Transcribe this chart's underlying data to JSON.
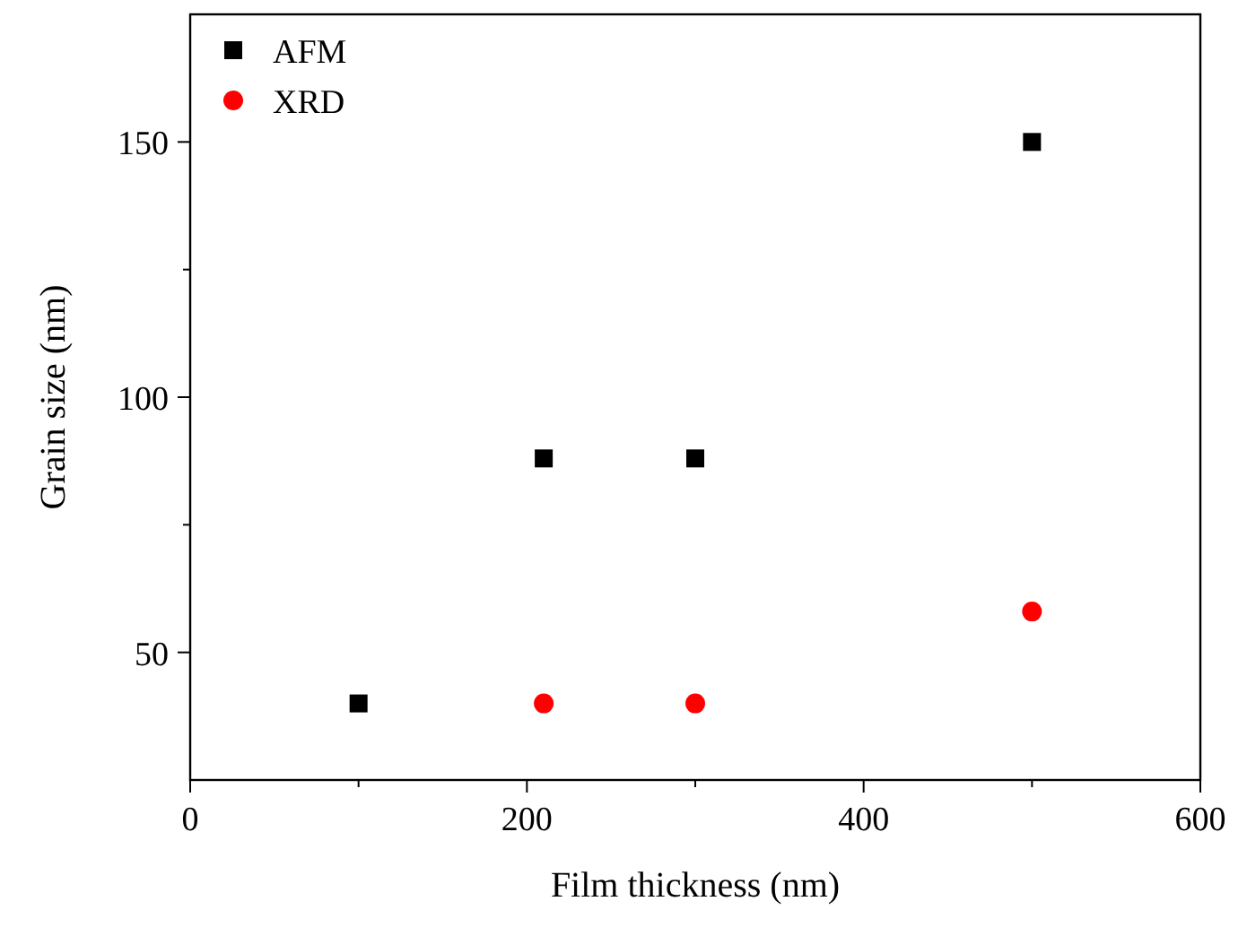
{
  "chart_data": {
    "type": "scatter",
    "xlabel": "Film thickness (nm)",
    "ylabel": "Grain size (nm)",
    "xlim": [
      0,
      600
    ],
    "xticks": [
      0,
      200,
      400,
      600
    ],
    "ylim": [
      25,
      175
    ],
    "yticks": [
      50,
      100,
      150
    ],
    "legend": "top left",
    "grid": false,
    "series": [
      {
        "name": "AFM",
        "color": "#000000",
        "marker": "square",
        "x": [
          100,
          210,
          300,
          500
        ],
        "values": [
          40,
          88,
          88,
          150
        ]
      },
      {
        "name": "XRD",
        "color": "#ff0000",
        "marker": "circle",
        "x": [
          210,
          300,
          500
        ],
        "values": [
          40,
          40,
          58
        ]
      }
    ]
  }
}
